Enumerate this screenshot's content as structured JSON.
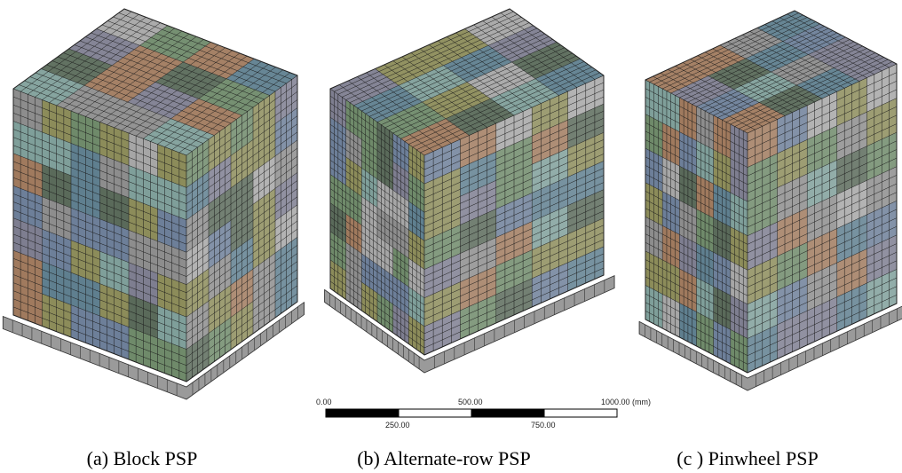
{
  "figures": [
    {
      "caption": "(a) Block PSP"
    },
    {
      "caption": "(b) Alternate-row PSP"
    },
    {
      "caption": "(c ) Pinwheel PSP"
    }
  ],
  "scale_bar": {
    "top_labels": [
      "0.00",
      "500.00",
      "1000.00 (mm)"
    ],
    "bottom_labels": [
      "250.00",
      "750.00"
    ]
  }
}
